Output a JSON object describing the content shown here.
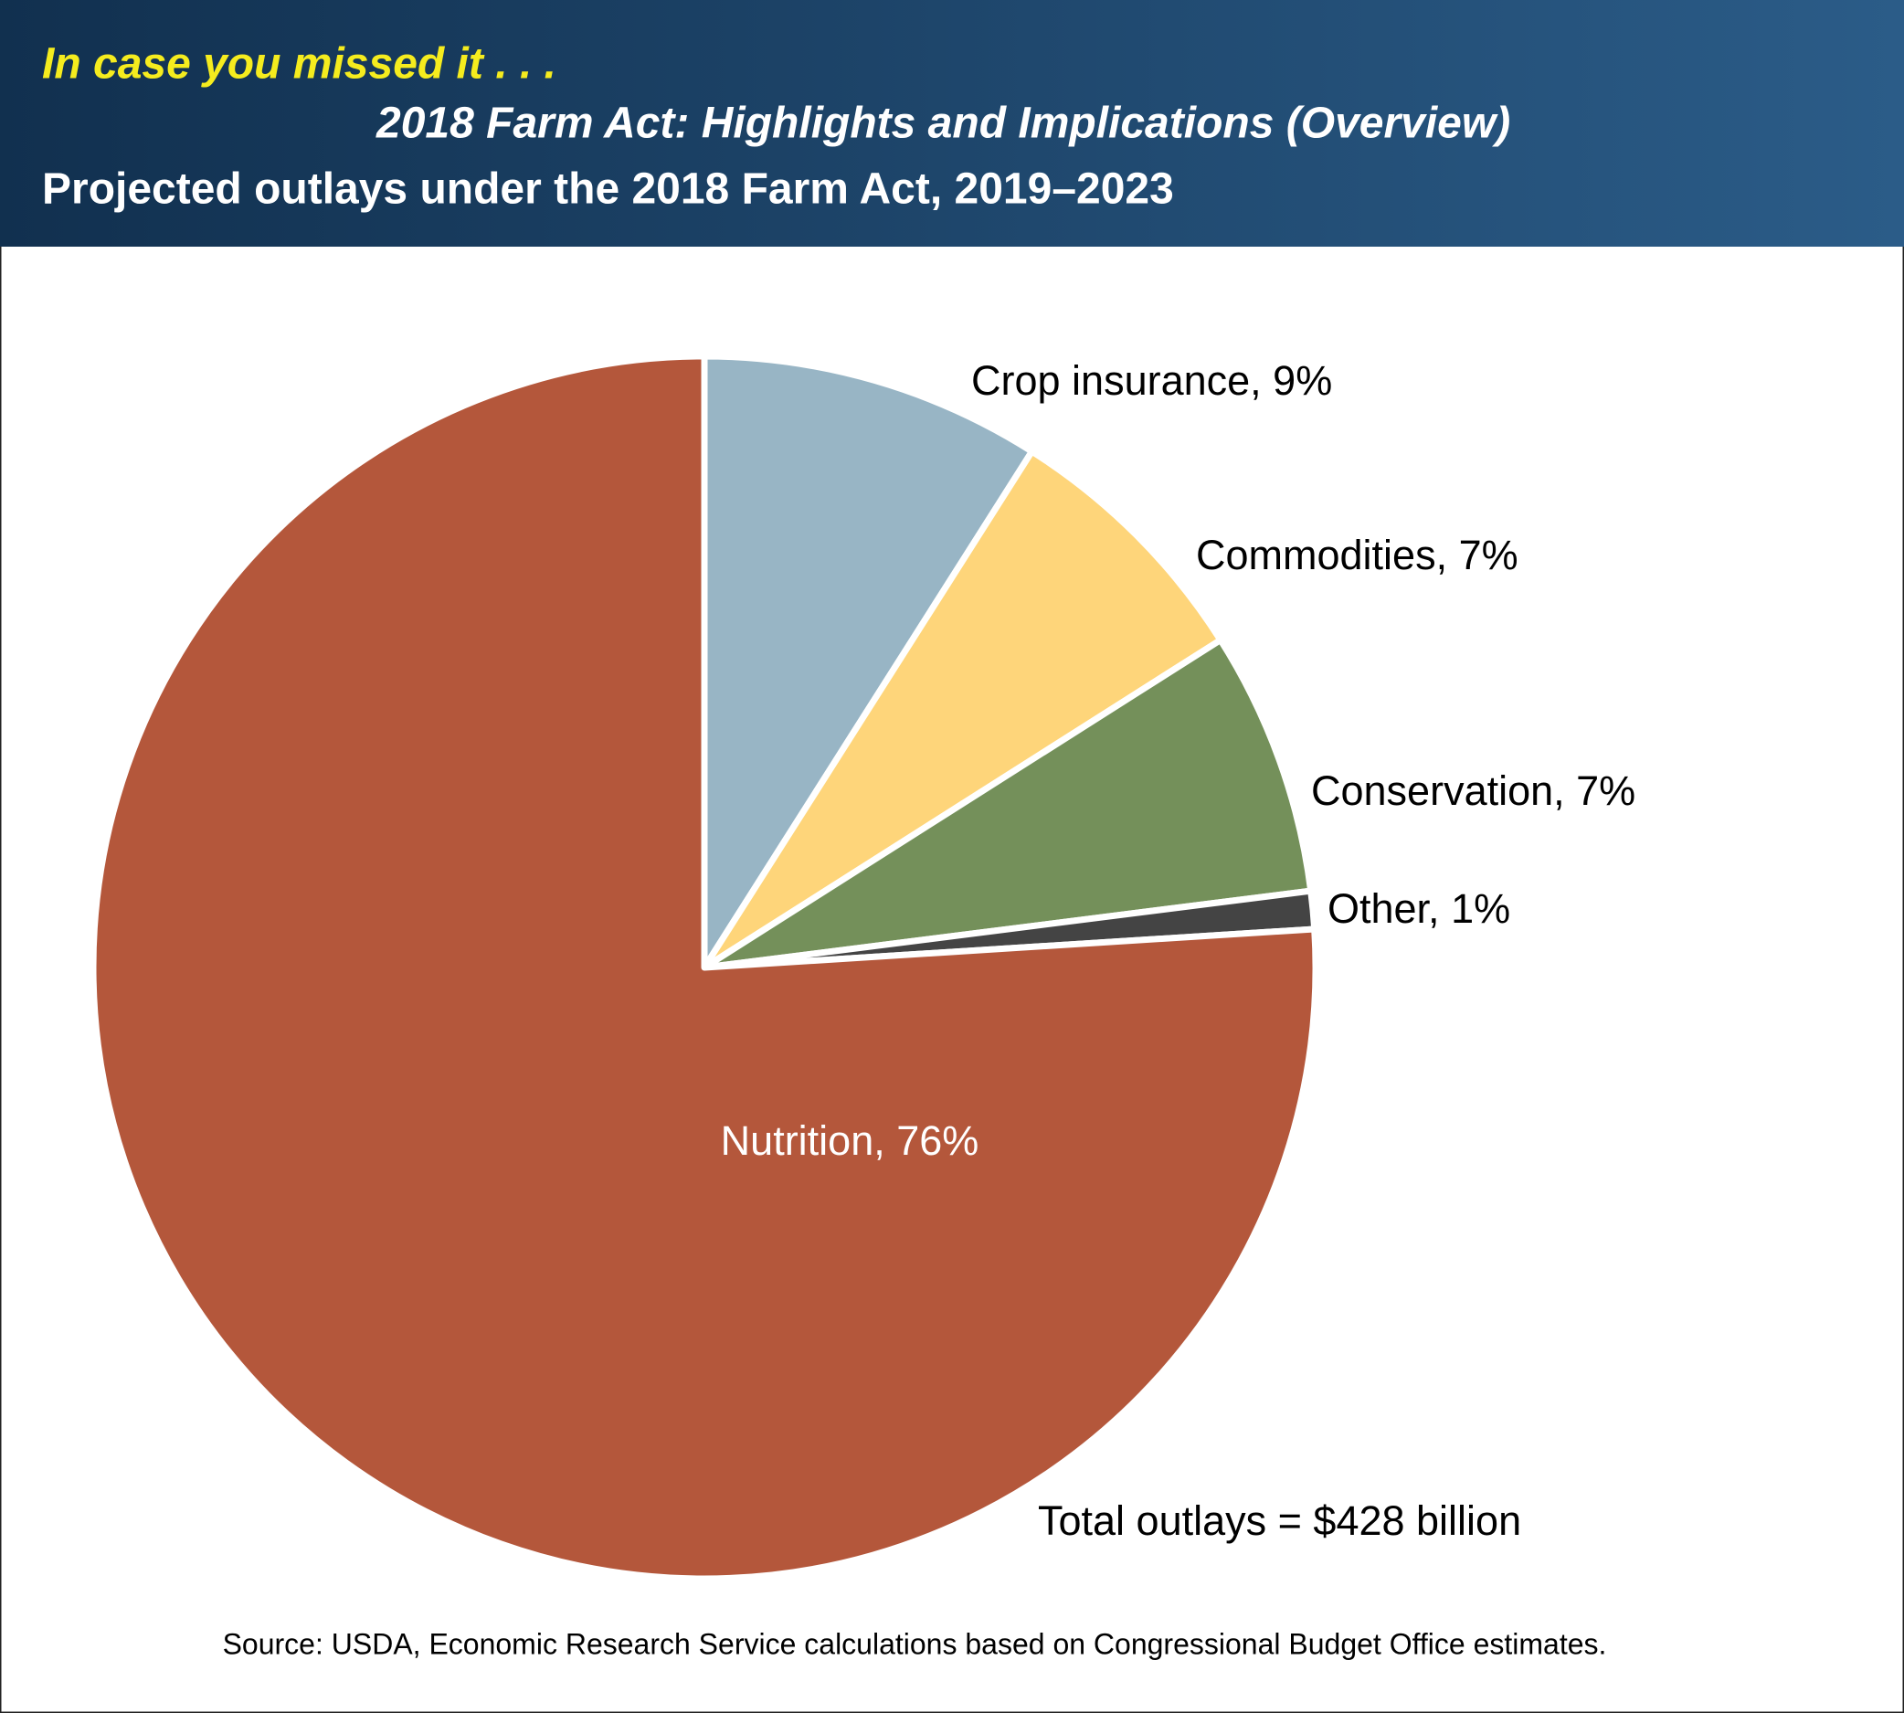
{
  "chart_data": {
    "type": "pie",
    "supertitle": "In case you missed it . . .",
    "subtitle": "2018 Farm Act: Highlights and Implications (Overview)",
    "title": "Projected outlays under the 2018 Farm Act, 2019–2023",
    "values": [
      9,
      7,
      7,
      1,
      76
    ],
    "value_labels": [
      "Crop insurance, 9%",
      "Commodities, 7%",
      "Conservation, 7%",
      "Other, 1%",
      "Nutrition, 76%"
    ],
    "colors": [
      "#98b5c5",
      "#fed57a",
      "#74905a",
      "#444444",
      "#b4573b"
    ],
    "annotation": "Total outlays = $428 billion",
    "source": "Source: USDA, Economic Research Service calculations based on Congressional Budget Office estimates."
  }
}
